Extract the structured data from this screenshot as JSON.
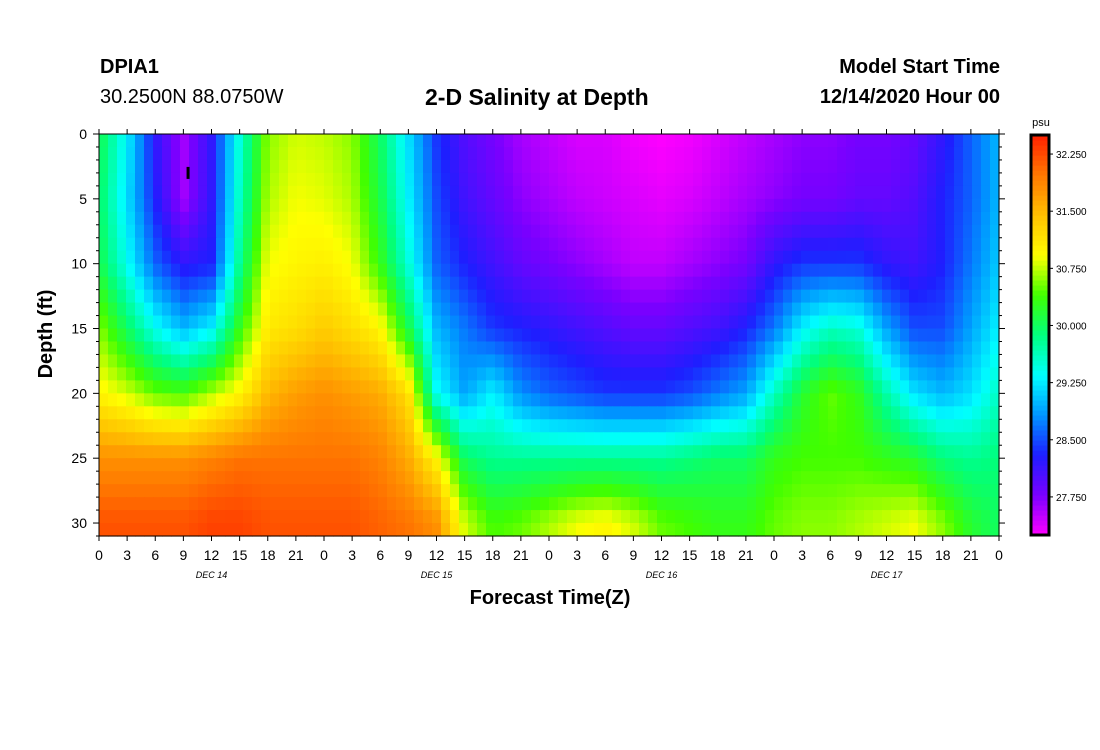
{
  "header": {
    "station": "DPIA1",
    "coords": "30.2500N 88.0750W",
    "title": "2-D Salinity at Depth",
    "model_start_label": "Model Start Time",
    "model_start_date": "12/14/2020 Hour 00"
  },
  "colors": {
    "scale": [
      "#ff00ff",
      "#7a00ff",
      "#1e1eff",
      "#0094ff",
      "#00ffff",
      "#00ff7f",
      "#40ff00",
      "#ffff00",
      "#ffc000",
      "#ff7800",
      "#ff2000"
    ]
  },
  "chart_data": {
    "type": "heatmap",
    "title": "2-D Salinity at Depth",
    "xlabel": "Forecast Time(Z)",
    "ylabel": "Depth (ft)",
    "x_hours_range": [
      0,
      96
    ],
    "x_tick_labels": [
      "0",
      "3",
      "6",
      "9",
      "12",
      "15",
      "18",
      "21",
      "0",
      "3",
      "6",
      "9",
      "12",
      "15",
      "18",
      "21",
      "0",
      "3",
      "6",
      "9",
      "12",
      "15",
      "18",
      "21",
      "0",
      "3",
      "6",
      "9",
      "12",
      "15",
      "18",
      "21",
      "0"
    ],
    "day_labels": [
      {
        "label": "DEC 14",
        "hour": 12
      },
      {
        "label": "DEC 15",
        "hour": 36
      },
      {
        "label": "DEC 16",
        "hour": 60
      },
      {
        "label": "DEC 17",
        "hour": 84
      }
    ],
    "y_range": [
      0,
      31
    ],
    "y_ticks": [
      0,
      5,
      10,
      15,
      20,
      25,
      30
    ],
    "colorbar": {
      "unit": "psu",
      "min": 27.25,
      "max": 32.5,
      "tick_values": [
        32.25,
        31.5,
        30.75,
        30.0,
        29.25,
        28.5,
        27.75
      ],
      "tick_labels": [
        "32.250",
        "31.500",
        "30.750",
        "30.000",
        "29.250",
        "28.500",
        "27.750"
      ]
    },
    "marker": {
      "hour": 9.5,
      "depth": 3
    },
    "salinity_grid": {
      "hours": [
        0,
        3,
        6,
        9,
        12,
        15,
        18,
        21,
        24,
        27,
        30,
        33,
        36,
        39,
        42,
        45,
        48,
        51,
        54,
        57,
        60,
        63,
        66,
        69,
        72,
        75,
        78,
        81,
        84,
        87,
        90,
        93,
        96
      ],
      "depths": [
        0,
        5,
        10,
        15,
        20,
        25,
        30
      ],
      "values": [
        [
          30.1,
          29.3,
          28.2,
          27.6,
          28.2,
          29.5,
          30.6,
          30.8,
          30.75,
          30.6,
          30.0,
          29.2,
          28.4,
          28.0,
          27.8,
          27.6,
          27.5,
          27.4,
          27.4,
          27.3,
          27.25,
          27.3,
          27.4,
          27.5,
          27.6,
          27.7,
          27.7,
          27.8,
          27.8,
          27.9,
          28.2,
          28.6,
          29.0
        ],
        [
          30.0,
          29.2,
          28.3,
          27.6,
          28.2,
          29.6,
          30.7,
          30.9,
          30.85,
          30.7,
          30.1,
          29.3,
          28.5,
          28.1,
          27.9,
          27.7,
          27.6,
          27.5,
          27.45,
          27.4,
          27.35,
          27.4,
          27.5,
          27.6,
          27.7,
          27.8,
          27.8,
          27.9,
          27.9,
          28.0,
          28.3,
          28.6,
          29.0
        ],
        [
          30.1,
          29.4,
          28.6,
          28.2,
          28.3,
          29.8,
          30.9,
          31.0,
          31.05,
          30.9,
          30.3,
          29.5,
          28.6,
          28.3,
          28.1,
          27.9,
          27.8,
          27.7,
          27.6,
          27.5,
          27.5,
          27.6,
          27.7,
          27.8,
          28.2,
          28.4,
          28.4,
          28.4,
          28.2,
          28.1,
          28.3,
          28.7,
          29.1
        ],
        [
          30.6,
          30.0,
          29.4,
          29.0,
          29.3,
          30.3,
          31.1,
          31.2,
          31.35,
          31.2,
          31.0,
          30.1,
          29.0,
          28.7,
          28.4,
          28.3,
          28.2,
          28.1,
          28.0,
          27.9,
          27.9,
          28.0,
          28.1,
          28.3,
          28.7,
          29.3,
          29.6,
          29.5,
          28.9,
          28.5,
          28.5,
          28.9,
          29.3
        ],
        [
          31.0,
          30.8,
          30.5,
          30.4,
          30.7,
          31.0,
          31.5,
          31.7,
          31.8,
          31.7,
          31.6,
          31.2,
          29.4,
          28.9,
          29.3,
          28.8,
          28.6,
          28.5,
          28.4,
          28.4,
          28.4,
          28.5,
          28.7,
          28.9,
          29.6,
          30.2,
          30.5,
          30.3,
          29.7,
          29.2,
          29.0,
          29.2,
          29.6
        ],
        [
          31.8,
          31.8,
          31.8,
          31.8,
          31.9,
          32.0,
          32.0,
          32.0,
          32.0,
          32.0,
          31.9,
          31.6,
          31.0,
          30.0,
          29.8,
          29.8,
          29.8,
          29.8,
          29.8,
          29.8,
          29.8,
          29.9,
          30.0,
          30.0,
          30.3,
          30.4,
          30.4,
          30.4,
          30.3,
          30.2,
          29.9,
          29.8,
          29.9
        ],
        [
          32.2,
          32.2,
          32.2,
          32.2,
          32.3,
          32.3,
          32.2,
          32.2,
          32.2,
          32.2,
          32.1,
          32.0,
          31.8,
          30.8,
          30.4,
          30.5,
          30.7,
          30.9,
          31.0,
          30.8,
          30.5,
          30.4,
          30.3,
          30.3,
          30.5,
          30.6,
          30.6,
          30.7,
          30.8,
          30.9,
          30.6,
          30.2,
          30.0
        ]
      ]
    }
  }
}
